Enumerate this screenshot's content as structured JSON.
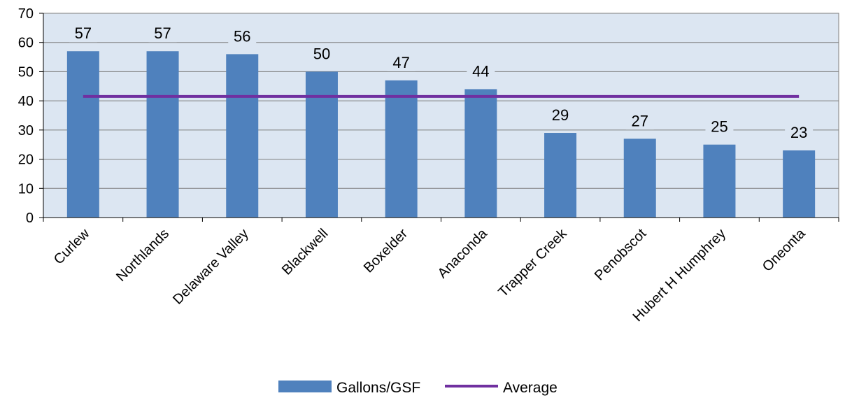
{
  "chart_data": {
    "type": "bar",
    "title": "",
    "xlabel": "",
    "ylabel": "",
    "ylim": [
      0,
      70
    ],
    "yticks": [
      0,
      10,
      20,
      30,
      40,
      50,
      60,
      70
    ],
    "grid": true,
    "legend_position": "bottom",
    "categories": [
      "Curlew",
      "Northlands",
      "Delaware Valley",
      "Blackwell",
      "Boxelder",
      "Anaconda",
      "Trapper Creek",
      "Penobscot",
      "Hubert H Humphrey",
      "Oneonta"
    ],
    "series": [
      {
        "name": "Gallons/GSF",
        "type": "bar",
        "values": [
          57,
          57,
          56,
          50,
          47,
          44,
          29,
          27,
          25,
          23
        ],
        "data_labels": [
          "57",
          "57",
          "56",
          "50",
          "47",
          "44",
          "29",
          "27",
          "25",
          "23"
        ],
        "color": "#4f81bd"
      },
      {
        "name": "Average",
        "type": "line",
        "value": 41.5,
        "color": "#7030a0"
      }
    ],
    "colors": {
      "plot_background": "#dce6f2",
      "gridline": "#7f7f7f",
      "axis": "#000000"
    }
  }
}
